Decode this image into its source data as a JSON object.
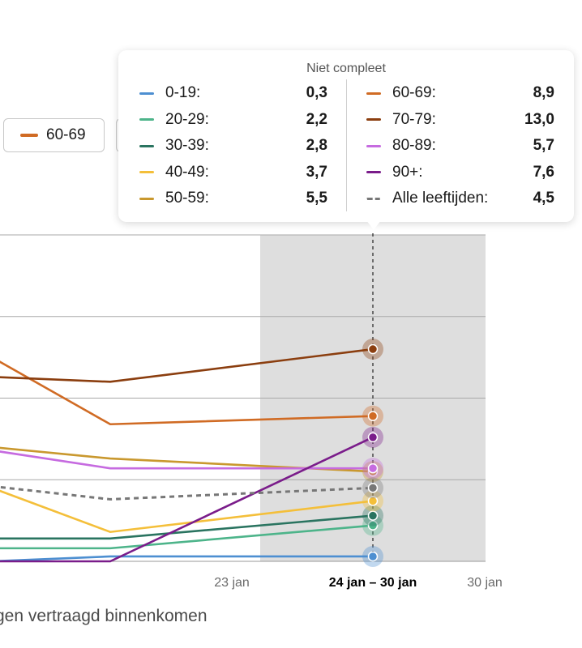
{
  "legend_buttons": [
    {
      "label": "60-69",
      "color": "#d06b24"
    }
  ],
  "footnote": "gen vertraagd binnenkomen",
  "tooltip": {
    "title": "Niet compleet",
    "left_rows": [
      {
        "label": "0-19:",
        "value": "0,3",
        "color": "#4d8fd1",
        "dashed": false
      },
      {
        "label": "20-29:",
        "value": "2,2",
        "color": "#4db48a",
        "dashed": false
      },
      {
        "label": "30-39:",
        "value": "2,8",
        "color": "#2a7460",
        "dashed": false
      },
      {
        "label": "40-49:",
        "value": "3,7",
        "color": "#f4bf3a",
        "dashed": false
      },
      {
        "label": "50-59:",
        "value": "5,5",
        "color": "#c9982e",
        "dashed": false
      }
    ],
    "right_rows": [
      {
        "label": "60-69:",
        "value": "8,9",
        "color": "#d06b24",
        "dashed": false
      },
      {
        "label": "70-79:",
        "value": "13,0",
        "color": "#8b3e0f",
        "dashed": false
      },
      {
        "label": "80-89:",
        "value": "5,7",
        "color": "#c66be0",
        "dashed": false
      },
      {
        "label": "90+:",
        "value": "7,6",
        "color": "#7a1c8a",
        "dashed": false
      },
      {
        "label": "Alle leeftijden:",
        "value": "4,5",
        "color": "#777777",
        "dashed": true
      }
    ]
  },
  "chart_data": {
    "type": "line",
    "x_ticks": [
      "23 jan",
      "24 jan – 30 jan",
      "30 jan"
    ],
    "active_tick": "24 jan – 30 jan",
    "shaded_label": "Niet compleet",
    "ylim": [
      0,
      20
    ],
    "gridlines": [
      0,
      5,
      10,
      15,
      20
    ],
    "series": [
      {
        "name": "0-19",
        "color": "#4d8fd1",
        "dashed": false,
        "values": [
          0.0,
          0.3,
          0.3
        ]
      },
      {
        "name": "20-29",
        "color": "#4db48a",
        "dashed": false,
        "values": [
          0.8,
          0.8,
          2.2
        ]
      },
      {
        "name": "30-39",
        "color": "#2a7460",
        "dashed": false,
        "values": [
          1.4,
          1.4,
          2.8
        ]
      },
      {
        "name": "40-49",
        "color": "#f4bf3a",
        "dashed": false,
        "values": [
          4.5,
          1.8,
          3.7
        ]
      },
      {
        "name": "50-59",
        "color": "#c9982e",
        "dashed": false,
        "values": [
          7.0,
          6.3,
          5.5
        ]
      },
      {
        "name": "60-69",
        "color": "#d06b24",
        "dashed": false,
        "values": [
          12.5,
          8.4,
          8.9
        ]
      },
      {
        "name": "70-79",
        "color": "#8b3e0f",
        "dashed": false,
        "values": [
          11.3,
          11.0,
          13.0
        ]
      },
      {
        "name": "80-89",
        "color": "#c66be0",
        "dashed": false,
        "values": [
          6.8,
          5.7,
          5.7
        ]
      },
      {
        "name": "90+",
        "color": "#7a1c8a",
        "dashed": false,
        "values": [
          0.0,
          0.0,
          7.6
        ]
      },
      {
        "name": "Alle leeftijden",
        "color": "#777777",
        "dashed": true,
        "values": [
          4.6,
          3.8,
          4.5
        ]
      }
    ]
  }
}
